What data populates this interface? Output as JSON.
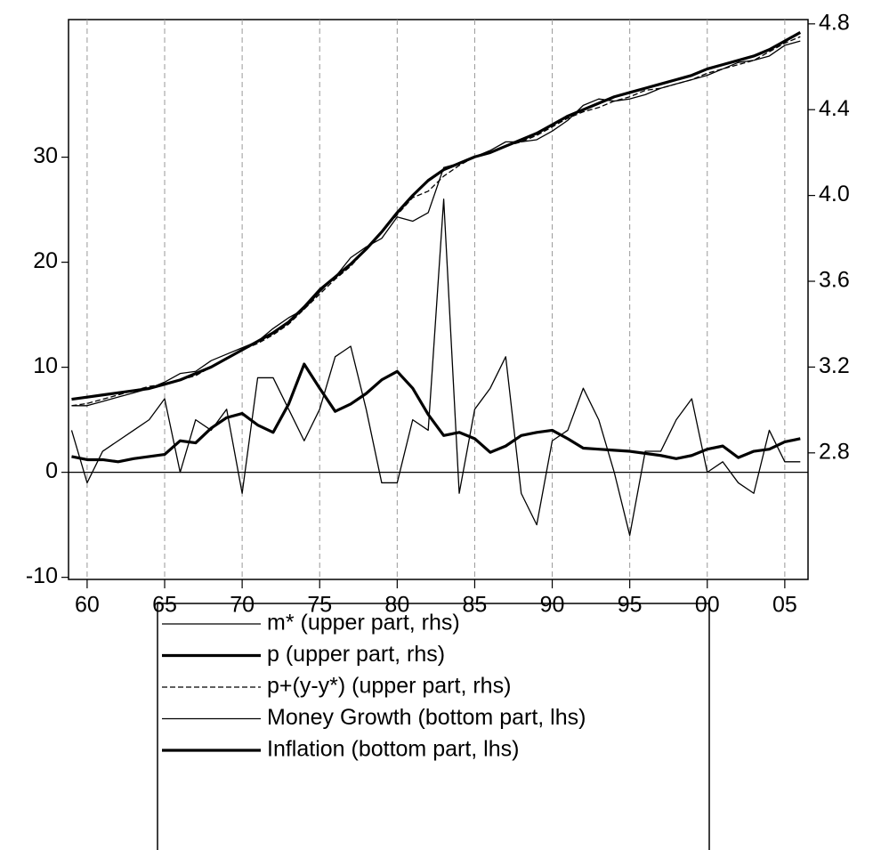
{
  "chart_data": {
    "type": "line",
    "x": [
      1959,
      1960,
      1961,
      1962,
      1963,
      1964,
      1965,
      1966,
      1967,
      1968,
      1969,
      1970,
      1971,
      1972,
      1973,
      1974,
      1975,
      1976,
      1977,
      1978,
      1979,
      1980,
      1981,
      1982,
      1983,
      1984,
      1985,
      1986,
      1987,
      1988,
      1989,
      1990,
      1991,
      1992,
      1993,
      1994,
      1995,
      1996,
      1997,
      1998,
      1999,
      2000,
      2001,
      2002,
      2003,
      2004,
      2005,
      2006
    ],
    "xlim": [
      1958.8,
      2006.5
    ],
    "xticks": [
      {
        "value": 1960,
        "label": "60"
      },
      {
        "value": 1965,
        "label": "65"
      },
      {
        "value": 1970,
        "label": "70"
      },
      {
        "value": 1975,
        "label": "75"
      },
      {
        "value": 1980,
        "label": "80"
      },
      {
        "value": 1985,
        "label": "85"
      },
      {
        "value": 1990,
        "label": "90"
      },
      {
        "value": 1995,
        "label": "95"
      },
      {
        "value": 2000,
        "label": "00"
      },
      {
        "value": 2005,
        "label": "05"
      }
    ],
    "ylim": [
      -10.2,
      43.1
    ],
    "yticks": [
      -10,
      0,
      10,
      20,
      30
    ],
    "y2lim": [
      2.21,
      4.82
    ],
    "y2ticks": [
      2.8,
      3.2,
      3.6,
      {
        "value": 4.0,
        "label": "4.0"
      },
      4.4,
      4.8
    ],
    "grid": true,
    "series": [
      {
        "name": "m* (upper part, rhs)",
        "color": "#000000",
        "axis": "y2",
        "linewidth": 1.3,
        "dashed": false,
        "values": [
          3.02,
          3.02,
          3.04,
          3.06,
          3.08,
          3.1,
          3.13,
          3.17,
          3.18,
          3.23,
          3.26,
          3.29,
          3.32,
          3.38,
          3.43,
          3.47,
          3.55,
          3.62,
          3.71,
          3.76,
          3.8,
          3.9,
          3.88,
          3.92,
          4.13,
          4.15,
          4.18,
          4.21,
          4.25,
          4.25,
          4.26,
          4.3,
          4.35,
          4.42,
          4.45,
          4.44,
          4.45,
          4.47,
          4.5,
          4.52,
          4.54,
          4.56,
          4.59,
          4.62,
          4.63,
          4.65,
          4.7,
          4.72
        ]
      },
      {
        "name": "p (upper part, rhs)",
        "color": "#000000",
        "axis": "y2",
        "linewidth": 3.2,
        "dashed": false,
        "values": [
          3.05,
          3.06,
          3.07,
          3.08,
          3.09,
          3.1,
          3.12,
          3.14,
          3.17,
          3.2,
          3.24,
          3.28,
          3.32,
          3.36,
          3.41,
          3.48,
          3.56,
          3.62,
          3.68,
          3.75,
          3.83,
          3.92,
          4.0,
          4.07,
          4.12,
          4.15,
          4.18,
          4.2,
          4.23,
          4.26,
          4.29,
          4.33,
          4.37,
          4.4,
          4.43,
          4.46,
          4.48,
          4.5,
          4.52,
          4.54,
          4.56,
          4.59,
          4.61,
          4.63,
          4.65,
          4.68,
          4.72,
          4.76
        ]
      },
      {
        "name": "p+(y-y*) (upper part, rhs)",
        "color": "#000000",
        "axis": "y2",
        "linewidth": 1.3,
        "dashed": true,
        "values": [
          3.02,
          3.03,
          3.05,
          3.07,
          3.09,
          3.11,
          3.12,
          3.14,
          3.16,
          3.2,
          3.24,
          3.28,
          3.31,
          3.35,
          3.4,
          3.47,
          3.54,
          3.61,
          3.67,
          3.75,
          3.83,
          3.91,
          3.99,
          4.02,
          4.09,
          4.14,
          4.18,
          4.2,
          4.23,
          4.25,
          4.28,
          4.32,
          4.36,
          4.39,
          4.41,
          4.44,
          4.46,
          4.49,
          4.5,
          4.52,
          4.54,
          4.57,
          4.59,
          4.61,
          4.63,
          4.67,
          4.71,
          4.74
        ]
      },
      {
        "name": "Money Growth (bottom part, lhs)",
        "color": "#000000",
        "axis": "y",
        "linewidth": 1.3,
        "dashed": false,
        "values": [
          4,
          -1,
          2,
          3,
          4,
          5,
          7,
          0,
          5,
          4,
          6,
          -2,
          9,
          9,
          6,
          3,
          6,
          11,
          12,
          6,
          -1,
          -1,
          5,
          4,
          26,
          -2,
          6,
          8,
          11,
          -2,
          -5,
          3,
          4,
          8,
          5,
          0,
          -6,
          2,
          2,
          5,
          7,
          0,
          1,
          -1,
          -2,
          4,
          1,
          1
        ]
      },
      {
        "name": "Inflation (bottom part, lhs)",
        "color": "#000000",
        "axis": "y",
        "linewidth": 3.2,
        "dashed": false,
        "values": [
          1.5,
          1.2,
          1.2,
          1.0,
          1.3,
          1.5,
          1.7,
          3.0,
          2.8,
          4.2,
          5.2,
          5.6,
          4.5,
          3.8,
          6.5,
          10.3,
          8.0,
          5.8,
          6.5,
          7.5,
          8.8,
          9.6,
          8.0,
          5.5,
          3.5,
          3.8,
          3.2,
          1.9,
          2.5,
          3.5,
          3.8,
          4.0,
          3.2,
          2.3,
          2.2,
          2.1,
          2.0,
          1.8,
          1.6,
          1.3,
          1.6,
          2.2,
          2.5,
          1.4,
          2.0,
          2.2,
          2.9,
          3.2
        ]
      }
    ]
  }
}
